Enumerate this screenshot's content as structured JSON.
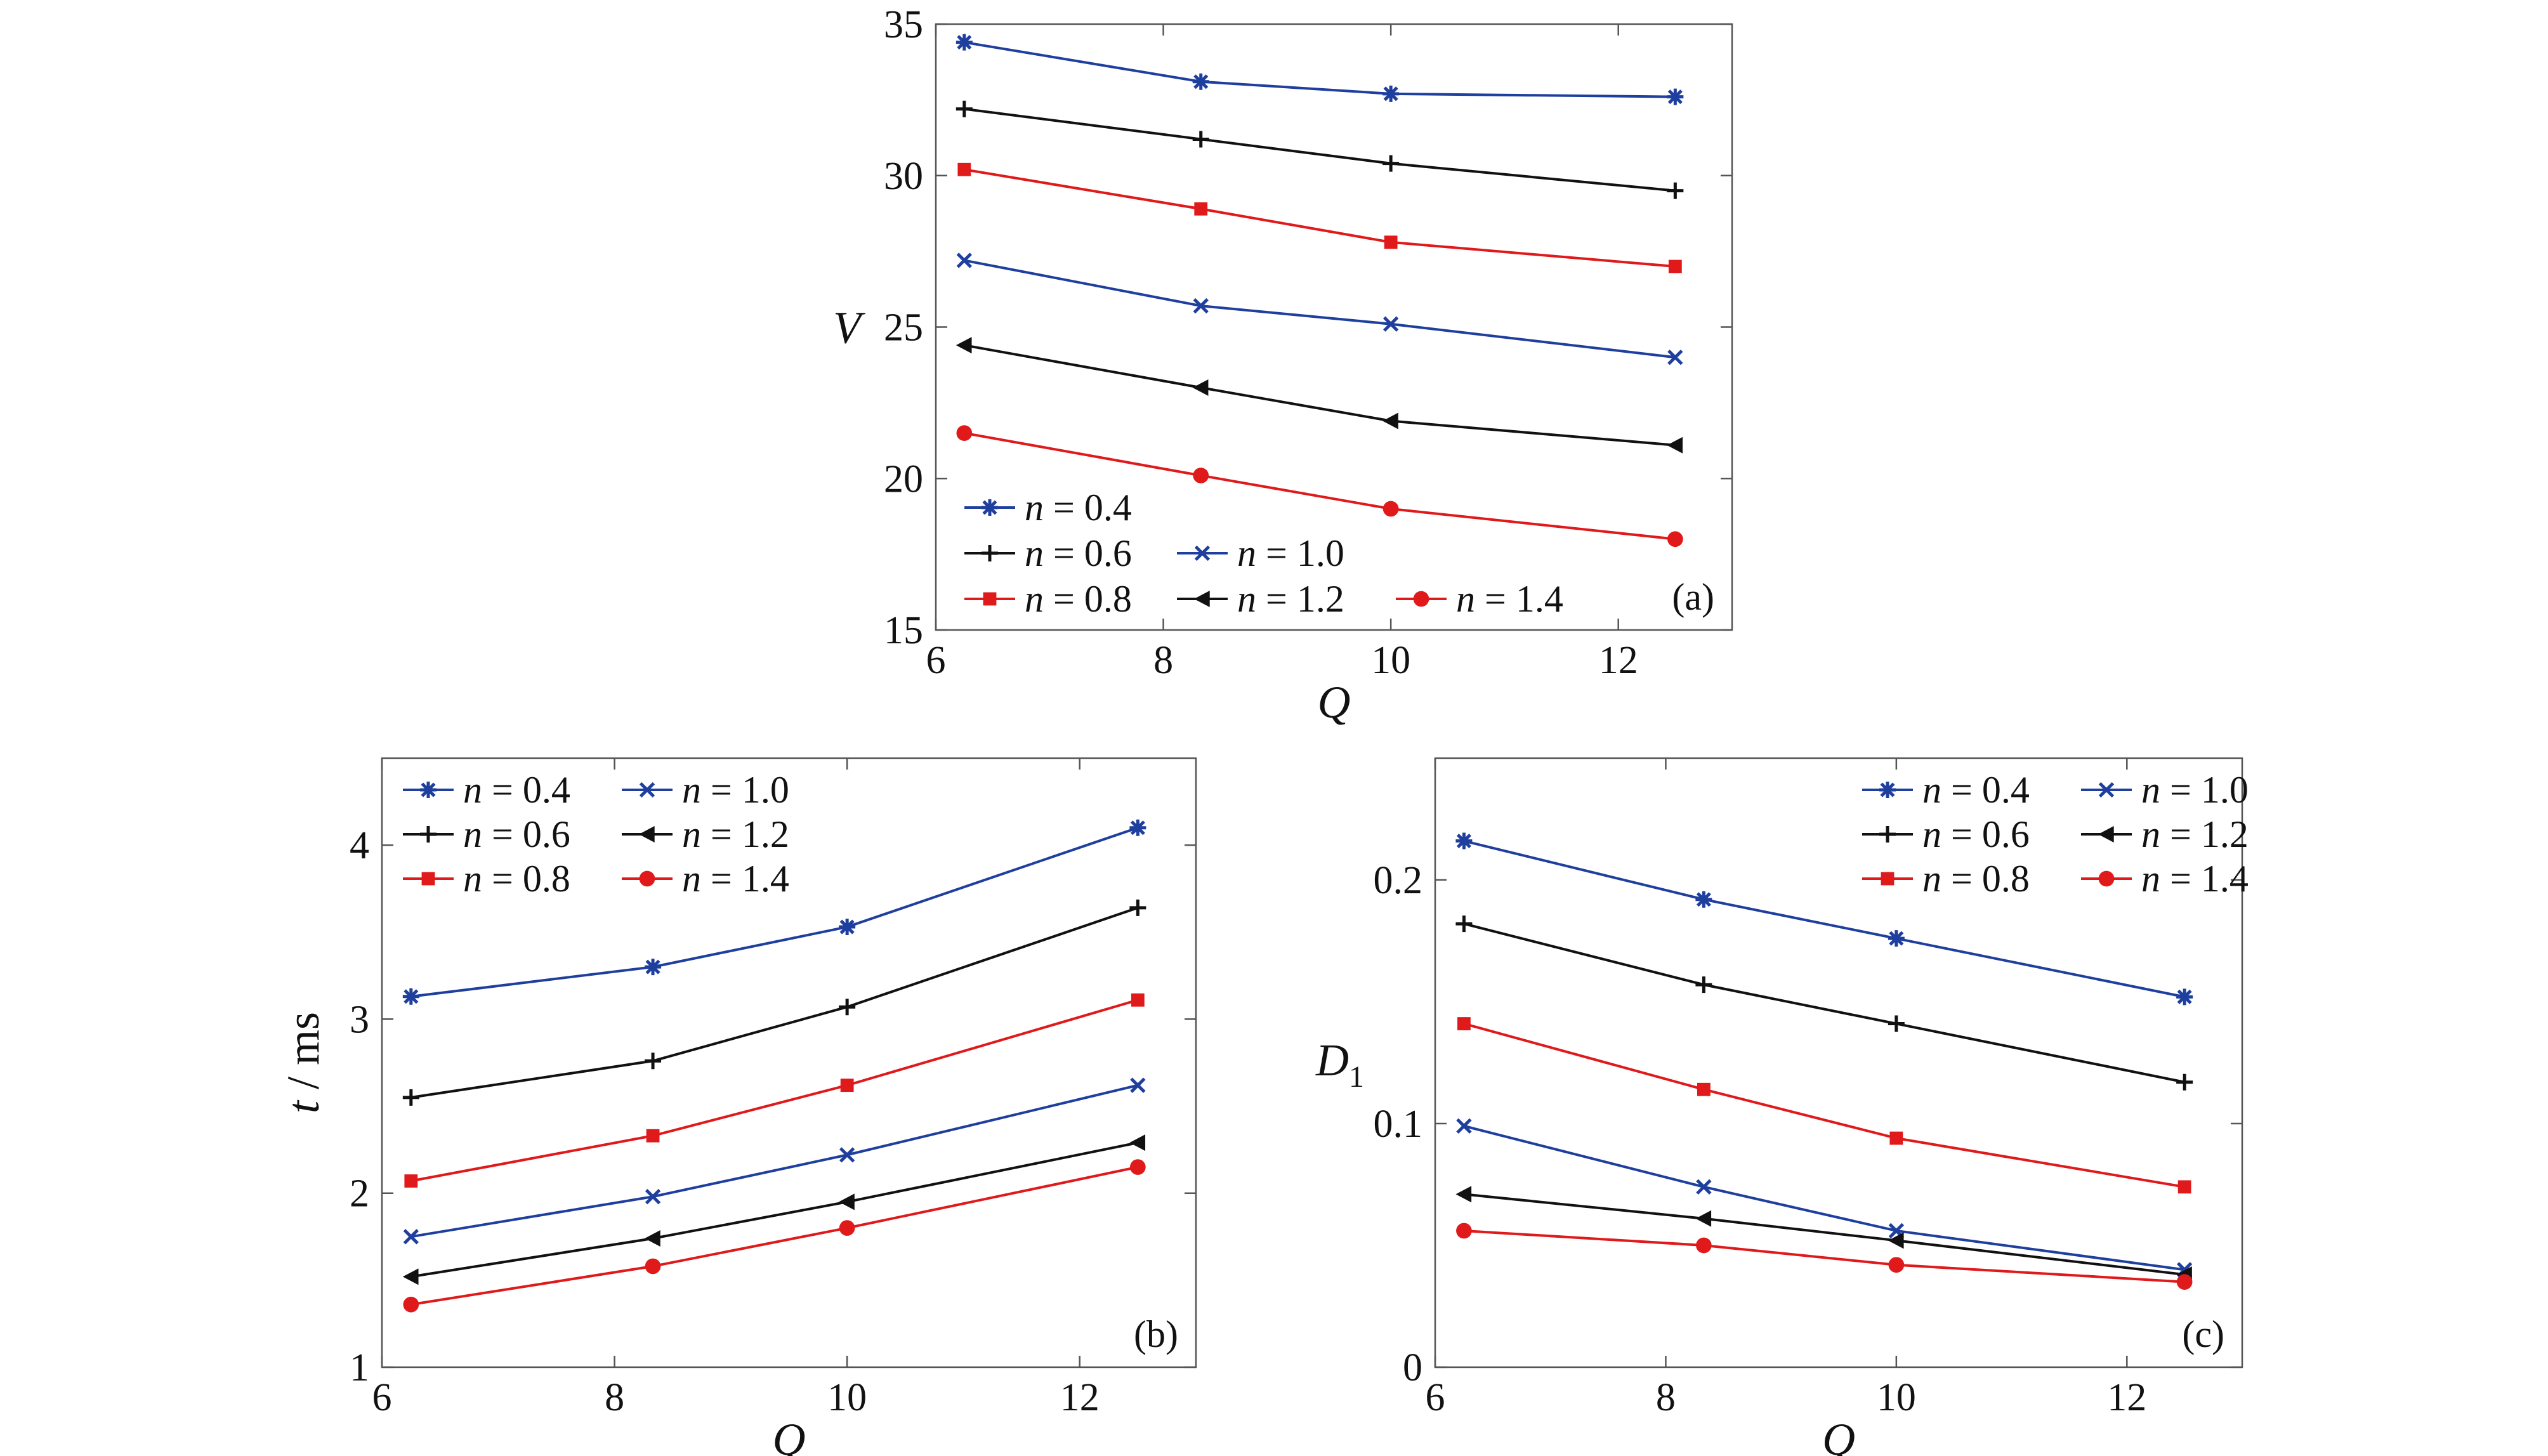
{
  "colors": {
    "blue": "#1f3f9e",
    "black": "#111111",
    "red": "#e0191b"
  },
  "chart_data": [
    {
      "type": "line",
      "panel_label": "(a)",
      "xlabel": "Q",
      "ylabel": "V",
      "xlim": [
        6,
        13
      ],
      "ylim": [
        15,
        35
      ],
      "xticks": [
        "6",
        "8",
        "10",
        "12"
      ],
      "yticks": [
        "15",
        "20",
        "25",
        "30",
        "35"
      ],
      "legend_position": "bottom-left",
      "x": [
        6.25,
        8.33,
        10,
        12.5
      ],
      "series": [
        {
          "name": "n = 0.4",
          "marker": "asterisk",
          "color": "#1f3f9e",
          "values": [
            34.4,
            33.1,
            32.7,
            32.6
          ]
        },
        {
          "name": "n = 0.6",
          "marker": "plus",
          "color": "#111111",
          "values": [
            32.2,
            31.2,
            30.4,
            29.5
          ]
        },
        {
          "name": "n = 0.8",
          "marker": "square",
          "color": "#e0191b",
          "values": [
            30.2,
            28.9,
            27.8,
            27.0
          ]
        },
        {
          "name": "n = 1.0",
          "marker": "x",
          "color": "#1f3f9e",
          "values": [
            27.2,
            25.7,
            25.1,
            24.0
          ]
        },
        {
          "name": "n = 1.2",
          "marker": "triangle-left",
          "color": "#111111",
          "values": [
            24.4,
            23.0,
            21.9,
            21.1
          ]
        },
        {
          "name": "n = 1.4",
          "marker": "circle",
          "color": "#e0191b",
          "values": [
            21.5,
            20.1,
            19.0,
            18.0
          ]
        }
      ]
    },
    {
      "type": "line",
      "panel_label": "(b)",
      "xlabel": "Q",
      "ylabel": "t / ms",
      "xlim": [
        6,
        13
      ],
      "ylim": [
        1,
        4.5
      ],
      "xticks": [
        "6",
        "8",
        "10",
        "12"
      ],
      "yticks": [
        "1",
        "2",
        "3",
        "4"
      ],
      "legend_position": "top-left",
      "x": [
        6.25,
        8.33,
        10,
        12.5
      ],
      "series": [
        {
          "name": "n = 0.4",
          "marker": "asterisk",
          "color": "#1f3f9e",
          "values": [
            3.13,
            3.3,
            3.53,
            4.1
          ]
        },
        {
          "name": "n = 0.6",
          "marker": "plus",
          "color": "#111111",
          "values": [
            2.55,
            2.76,
            3.07,
            3.64
          ]
        },
        {
          "name": "n = 0.8",
          "marker": "square",
          "color": "#e0191b",
          "values": [
            2.07,
            2.33,
            2.62,
            3.11
          ]
        },
        {
          "name": "n = 1.0",
          "marker": "x",
          "color": "#1f3f9e",
          "values": [
            1.75,
            1.98,
            2.22,
            2.62
          ]
        },
        {
          "name": "n = 1.2",
          "marker": "triangle-left",
          "color": "#111111",
          "values": [
            1.52,
            1.74,
            1.95,
            2.29
          ]
        },
        {
          "name": "n = 1.4",
          "marker": "circle",
          "color": "#e0191b",
          "values": [
            1.36,
            1.58,
            1.8,
            2.15
          ]
        }
      ]
    },
    {
      "type": "line",
      "panel_label": "(c)",
      "xlabel": "Q",
      "ylabel": "D",
      "ylabel_subscript": "1",
      "xlim": [
        6,
        13
      ],
      "ylim": [
        0,
        0.25
      ],
      "xticks": [
        "6",
        "8",
        "10",
        "12"
      ],
      "yticks": [
        "0",
        "0.1",
        "0.2"
      ],
      "legend_position": "top-right",
      "x": [
        6.25,
        8.33,
        10,
        12.5
      ],
      "series": [
        {
          "name": "n = 0.4",
          "marker": "asterisk",
          "color": "#1f3f9e",
          "values": [
            0.216,
            0.192,
            0.176,
            0.152
          ]
        },
        {
          "name": "n = 0.6",
          "marker": "plus",
          "color": "#111111",
          "values": [
            0.182,
            0.157,
            0.141,
            0.117
          ]
        },
        {
          "name": "n = 0.8",
          "marker": "square",
          "color": "#e0191b",
          "values": [
            0.141,
            0.114,
            0.094,
            0.074
          ]
        },
        {
          "name": "n = 1.0",
          "marker": "x",
          "color": "#1f3f9e",
          "values": [
            0.099,
            0.074,
            0.056,
            0.04
          ]
        },
        {
          "name": "n = 1.2",
          "marker": "triangle-left",
          "color": "#111111",
          "values": [
            0.071,
            0.061,
            0.052,
            0.038
          ]
        },
        {
          "name": "n = 1.4",
          "marker": "circle",
          "color": "#e0191b",
          "values": [
            0.056,
            0.05,
            0.042,
            0.035
          ]
        }
      ]
    }
  ]
}
